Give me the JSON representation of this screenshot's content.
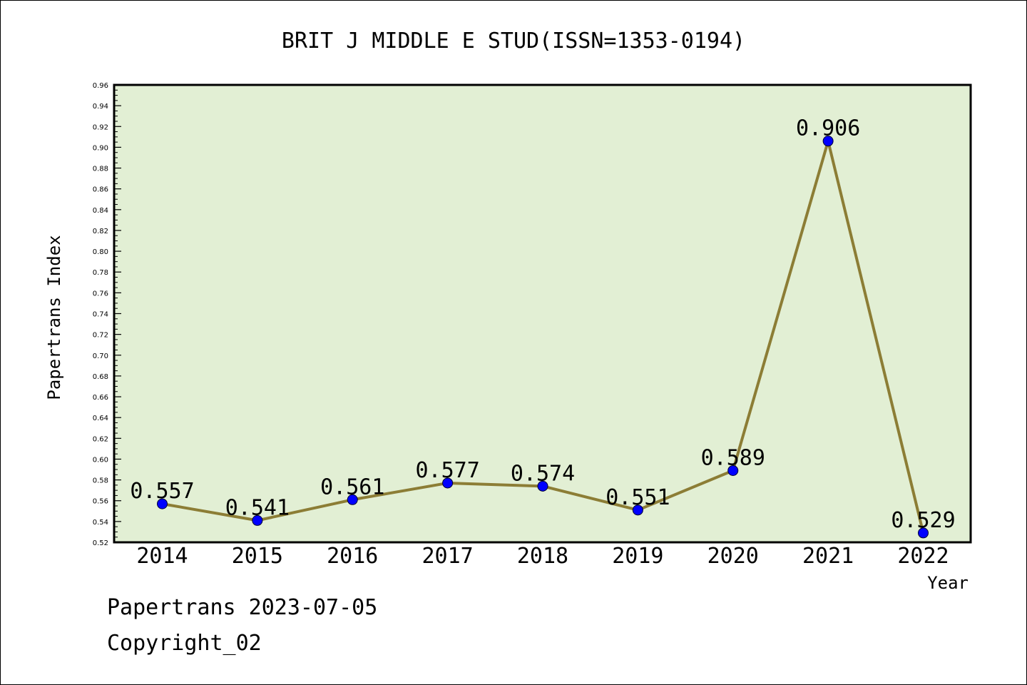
{
  "footer": {
    "line1": "Papertrans 2023-07-05",
    "line2": "Copyright_02"
  },
  "colors": {
    "plot_background": "#e2efd4",
    "line": "#8c7d35",
    "marker": "#0000ff",
    "axis": "#000000"
  },
  "chart_data": {
    "type": "line",
    "title": "BRIT J MIDDLE E STUD(ISSN=1353-0194)",
    "xlabel": "Year",
    "ylabel": "Papertrans Index",
    "categories": [
      "2014",
      "2015",
      "2016",
      "2017",
      "2018",
      "2019",
      "2020",
      "2021",
      "2022"
    ],
    "series": [
      {
        "values": [
          0.557,
          0.541,
          0.561,
          0.577,
          0.574,
          0.551,
          0.589,
          0.906,
          0.529
        ],
        "labels": [
          "0.557",
          "0.541",
          "0.561",
          "0.577",
          "0.574",
          "0.551",
          "0.589",
          "0.906",
          "0.529"
        ]
      }
    ],
    "ylim": [
      0.52,
      0.96
    ],
    "yticks": [
      "0.52",
      "0.54",
      "0.56",
      "0.58",
      "0.60",
      "0.62",
      "0.64",
      "0.66",
      "0.68",
      "0.70",
      "0.72",
      "0.74",
      "0.76",
      "0.78",
      "0.80",
      "0.82",
      "0.84",
      "0.86",
      "0.88",
      "0.90",
      "0.92",
      "0.94",
      "0.96"
    ],
    "grid": false,
    "legend": "none"
  }
}
